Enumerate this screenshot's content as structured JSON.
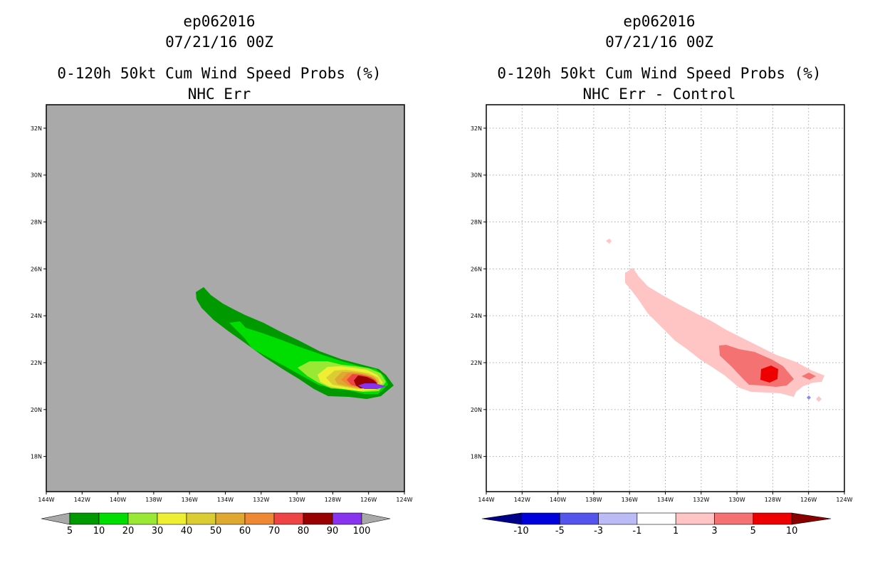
{
  "chart_data": [
    {
      "type": "contour",
      "storm": "ep062016",
      "datetime": "07/21/16 00Z",
      "title": "0-120h 50kt Cum Wind Speed Probs (%)",
      "subtitle": "NHC Err",
      "x_range_deg_west": [
        144,
        124
      ],
      "y_range_deg_north": [
        16.5,
        33
      ],
      "x_ticks": [
        "144W",
        "142W",
        "140W",
        "138W",
        "136W",
        "134W",
        "132W",
        "130W",
        "128W",
        "126W",
        "124W"
      ],
      "y_ticks": [
        "18N",
        "20N",
        "22N",
        "24N",
        "26N",
        "28N",
        "30N",
        "32N"
      ],
      "grid": false,
      "background": "#a9a9a9",
      "colorbar": {
        "labels": [
          "5",
          "10",
          "20",
          "30",
          "40",
          "50",
          "60",
          "70",
          "80",
          "90",
          "100"
        ],
        "colors": [
          "#009900",
          "#00dd00",
          "#99e833",
          "#eeee33",
          "#dccc33",
          "#dfa830",
          "#ee8833",
          "#ee4444",
          "#990000",
          "#8833ee"
        ],
        "under_color": "#a9a9a9",
        "over_color": "#a9a9a9"
      }
    },
    {
      "type": "contour",
      "storm": "ep062016",
      "datetime": "07/21/16 00Z",
      "title": "0-120h 50kt Cum Wind Speed Probs (%)",
      "subtitle": "NHC Err - Control",
      "x_range_deg_west": [
        144,
        124
      ],
      "y_range_deg_north": [
        16.5,
        33
      ],
      "x_ticks": [
        "144W",
        "142W",
        "140W",
        "138W",
        "136W",
        "134W",
        "132W",
        "130W",
        "128W",
        "126W",
        "124W"
      ],
      "y_ticks": [
        "18N",
        "20N",
        "22N",
        "24N",
        "26N",
        "28N",
        "30N",
        "32N"
      ],
      "grid": true,
      "background": "#ffffff",
      "colorbar": {
        "labels": [
          "-10",
          "-5",
          "-3",
          "-1",
          "1",
          "3",
          "5",
          "10"
        ],
        "colors": [
          "#0000dd",
          "#5555ee",
          "#bbbbf5",
          "#ffffff",
          "#ffc4c4",
          "#f57272",
          "#ee0000"
        ],
        "under_color": "#000088",
        "over_color": "#880000"
      }
    }
  ]
}
